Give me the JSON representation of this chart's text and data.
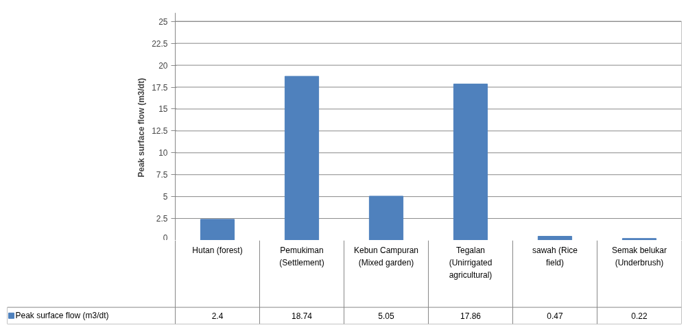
{
  "chart_data": {
    "type": "bar",
    "ylabel": "Peak surface flow  (m3/dt)",
    "categories": [
      "Hutan (forest)",
      "Pemukiman (Settlement)",
      "Kebun Campuran (Mixed garden)",
      "Tegalan (Unirrigated agricultural)",
      "sawah (Rice field)",
      "Semak belukar (Underbrush)"
    ],
    "series": [
      {
        "name": "Peak surface flow (m3/dt)",
        "color": "#4f81bd",
        "values": [
          2.4,
          18.74,
          5.05,
          17.86,
          0.47,
          0.22
        ]
      }
    ],
    "ylim": [
      0,
      25
    ],
    "yticks": [
      0,
      2.5,
      5,
      7.5,
      10,
      12.5,
      15,
      17.5,
      20,
      22.5,
      25
    ],
    "grid": "y",
    "legend": "bottom",
    "data_labels": true
  }
}
